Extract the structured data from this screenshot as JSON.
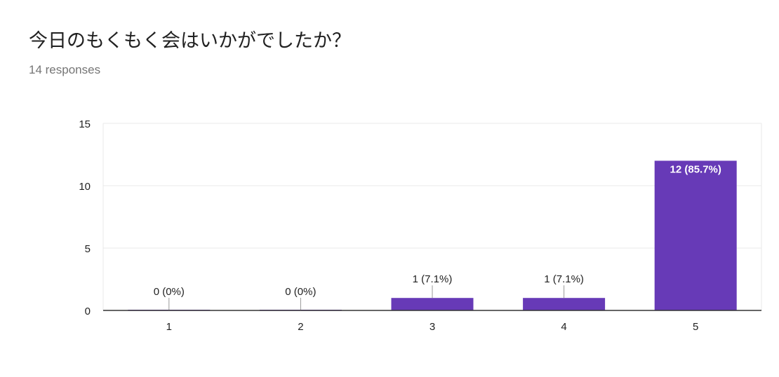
{
  "question": {
    "title": "今日のもくもく会はいかがでしたか？",
    "responses": "14 responses"
  },
  "chart_data": {
    "type": "bar",
    "categories": [
      "1",
      "2",
      "3",
      "4",
      "5"
    ],
    "values": [
      0,
      0,
      1,
      1,
      12
    ],
    "data_labels": [
      "0 (0%)",
      "0 (0%)",
      "1 (7.1%)",
      "1 (7.1%)",
      "12 (85.7%)"
    ],
    "y_ticks": [
      0,
      5,
      10,
      15
    ],
    "ylim": [
      0,
      15
    ],
    "grid": true,
    "colors": {
      "bar": "#673ab7",
      "grid": "#e8e8e8",
      "axis": "#333333",
      "label": "#212121",
      "inside_label": "#ffffff"
    }
  }
}
